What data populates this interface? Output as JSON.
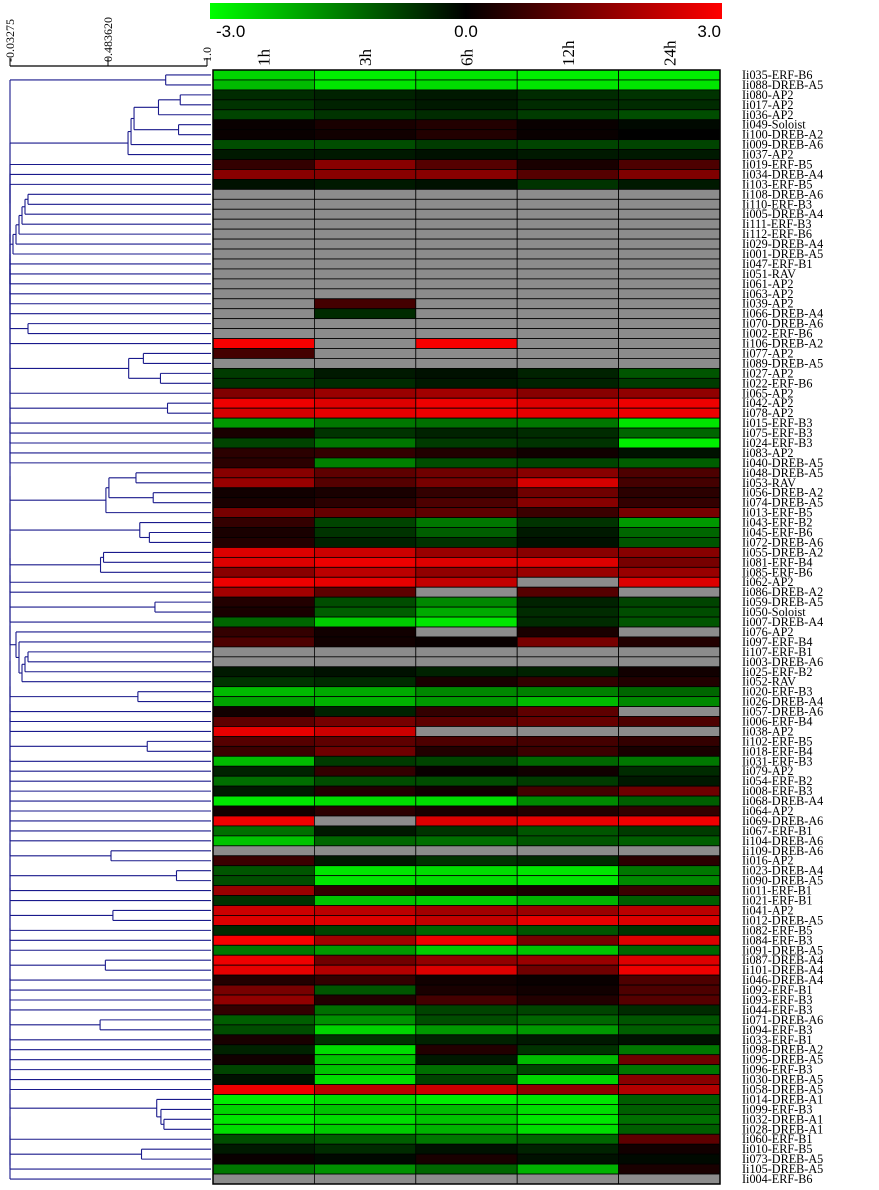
{
  "chart_data": {
    "type": "heatmap",
    "title": "",
    "columns": [
      "1h",
      "3h",
      "6h",
      "12h",
      "24h"
    ],
    "color_scale": {
      "min": -3.0,
      "mid": 0.0,
      "max": 3.0,
      "labels": [
        "-3.0",
        "0.0",
        "3.0"
      ],
      "low_color": "#00ff00",
      "mid_color": "#000000",
      "high_color": "#ff0000",
      "missing_color": "#8c8c8c"
    },
    "dendrogram_axis": {
      "tick_labels": [
        "-0.03275",
        "0.483620",
        "1.0"
      ],
      "line_color": "#1a1a8c"
    },
    "rows": [
      {
        "label": "Ii035-ERF-B6",
        "values": [
          -2.5,
          -2.8,
          -2.7,
          -2.8,
          -2.8
        ]
      },
      {
        "label": "Ii088-DREB-A5",
        "values": [
          -2.2,
          -2.7,
          -2.6,
          -2.7,
          -2.7
        ]
      },
      {
        "label": "Ii080-AP2",
        "values": [
          -0.5,
          -0.4,
          -0.3,
          -0.5,
          -0.6
        ]
      },
      {
        "label": "Ii017-AP2",
        "values": [
          -0.6,
          -0.4,
          -0.3,
          -0.5,
          -0.5
        ]
      },
      {
        "label": "Ii036-AP2",
        "values": [
          -0.8,
          -0.6,
          -0.5,
          -0.7,
          -0.9
        ]
      },
      {
        "label": "Ii049-Soloist",
        "values": [
          0.1,
          0.3,
          0.4,
          0.1,
          -0.1
        ]
      },
      {
        "label": "Ii100-DREB-A2",
        "values": [
          0.1,
          0.2,
          0.4,
          0.1,
          0.0
        ]
      },
      {
        "label": "Ii009-DREB-A6",
        "values": [
          -0.9,
          -0.9,
          -0.7,
          -0.8,
          -0.8
        ]
      },
      {
        "label": "Ii037-AP2",
        "values": [
          -0.3,
          -0.3,
          -0.2,
          -0.3,
          -0.3
        ]
      },
      {
        "label": "Ii019-ERF-B5",
        "values": [
          0.6,
          1.6,
          1.0,
          0.3,
          0.9
        ]
      },
      {
        "label": "Ii034-DREB-A4",
        "values": [
          1.6,
          1.6,
          1.6,
          1.0,
          1.5
        ]
      },
      {
        "label": "Ii103-ERF-B5",
        "values": [
          -0.2,
          -0.3,
          -0.2,
          -0.6,
          -0.3
        ]
      },
      {
        "label": "Ii108-DREB-A6",
        "values": [
          null,
          null,
          null,
          null,
          null
        ]
      },
      {
        "label": "Ii110-ERF-B3",
        "values": [
          null,
          null,
          null,
          null,
          null
        ]
      },
      {
        "label": "Ii005-DREB-A4",
        "values": [
          null,
          null,
          null,
          null,
          null
        ]
      },
      {
        "label": "Ii111-ERF-B3",
        "values": [
          null,
          null,
          null,
          null,
          null
        ]
      },
      {
        "label": "Ii112-ERF-B6",
        "values": [
          null,
          null,
          null,
          null,
          null
        ]
      },
      {
        "label": "Ii029-DREB-A4",
        "values": [
          null,
          null,
          null,
          null,
          null
        ]
      },
      {
        "label": "Ii001-DREB-A5",
        "values": [
          null,
          null,
          null,
          null,
          null
        ]
      },
      {
        "label": "Ii047-ERF-B1",
        "values": [
          null,
          null,
          null,
          null,
          null
        ]
      },
      {
        "label": "Ii051-RAV",
        "values": [
          null,
          null,
          null,
          null,
          null
        ]
      },
      {
        "label": "Ii061-AP2",
        "values": [
          null,
          null,
          null,
          null,
          null
        ]
      },
      {
        "label": "Ii063-AP2",
        "values": [
          null,
          null,
          null,
          null,
          null
        ]
      },
      {
        "label": "Ii039-AP2",
        "values": [
          null,
          0.8,
          null,
          null,
          null
        ]
      },
      {
        "label": "Ii066-DREB-A4",
        "values": [
          null,
          -0.5,
          null,
          null,
          null
        ]
      },
      {
        "label": "Ii070-DREB-A6",
        "values": [
          null,
          null,
          null,
          null,
          null
        ]
      },
      {
        "label": "Ii002-ERF-B6",
        "values": [
          null,
          null,
          null,
          null,
          null
        ]
      },
      {
        "label": "Ii106-DREB-A2",
        "values": [
          2.9,
          null,
          2.9,
          null,
          null
        ]
      },
      {
        "label": "Ii077-AP2",
        "values": [
          0.8,
          null,
          null,
          null,
          null
        ]
      },
      {
        "label": "Ii089-DREB-A5",
        "values": [
          null,
          null,
          null,
          null,
          null
        ]
      },
      {
        "label": "Ii027-AP2",
        "values": [
          -0.7,
          -0.3,
          -0.2,
          -0.4,
          -1.0
        ]
      },
      {
        "label": "Ii022-ERF-B6",
        "values": [
          -0.6,
          -0.5,
          -0.3,
          -0.4,
          -0.7
        ]
      },
      {
        "label": "Ii065-AP2",
        "values": [
          1.5,
          1.8,
          1.9,
          1.6,
          1.7
        ]
      },
      {
        "label": "Ii042-AP2",
        "values": [
          2.8,
          2.6,
          2.8,
          2.6,
          2.8
        ]
      },
      {
        "label": "Ii078-AP2",
        "values": [
          2.5,
          2.7,
          2.8,
          2.7,
          2.8
        ]
      },
      {
        "label": "Ii015-ERF-B3",
        "values": [
          -1.8,
          -1.4,
          -1.3,
          -1.4,
          -2.7
        ]
      },
      {
        "label": "Ii075-ERF-B3",
        "values": [
          0.3,
          -0.6,
          -0.4,
          -0.5,
          -1.2
        ]
      },
      {
        "label": "Ii024-ERF-B3",
        "values": [
          -0.8,
          -1.4,
          -0.7,
          -0.6,
          -2.8
        ]
      },
      {
        "label": "Ii083-AP2",
        "values": [
          0.5,
          0.6,
          0.4,
          0.2,
          -0.2
        ]
      },
      {
        "label": "Ii040-DREB-A5",
        "values": [
          0.5,
          -1.5,
          -0.9,
          -0.8,
          -1.1
        ]
      },
      {
        "label": "Ii048-DREB-A5",
        "values": [
          1.6,
          1.1,
          1.3,
          1.6,
          0.9
        ]
      },
      {
        "label": "Ii053-RAV",
        "values": [
          1.8,
          1.0,
          1.4,
          2.5,
          0.8
        ]
      },
      {
        "label": "Ii056-DREB-A2",
        "values": [
          0.2,
          0.3,
          0.6,
          1.3,
          0.5
        ]
      },
      {
        "label": "Ii074-DREB-A5",
        "values": [
          0.3,
          0.5,
          0.9,
          1.6,
          0.6
        ]
      },
      {
        "label": "Ii013-ERF-B5",
        "values": [
          1.4,
          1.2,
          1.1,
          0.7,
          1.4
        ]
      },
      {
        "label": "Ii043-ERF-B2",
        "values": [
          0.6,
          -0.8,
          -1.4,
          -0.6,
          -1.8
        ]
      },
      {
        "label": "Ii045-ERF-B6",
        "values": [
          0.3,
          -0.6,
          -1.1,
          -0.3,
          -1.2
        ]
      },
      {
        "label": "Ii072-DREB-A6",
        "values": [
          0.4,
          -0.4,
          -0.6,
          -0.2,
          -1.0
        ]
      },
      {
        "label": "Ii055-DREB-A2",
        "values": [
          2.6,
          2.4,
          1.8,
          1.6,
          1.6
        ]
      },
      {
        "label": "Ii081-ERF-B4",
        "values": [
          2.6,
          2.8,
          2.6,
          2.6,
          1.4
        ]
      },
      {
        "label": "Ii085-ERF-B6",
        "values": [
          1.6,
          2.2,
          1.7,
          1.8,
          1.8
        ]
      },
      {
        "label": "Ii062-AP2",
        "values": [
          2.8,
          2.7,
          2.3,
          null,
          2.6
        ]
      },
      {
        "label": "Ii086-DREB-A2",
        "values": [
          1.9,
          1.1,
          null,
          1.0,
          null
        ]
      },
      {
        "label": "Ii059-DREB-A5",
        "values": [
          0.4,
          -0.9,
          -1.6,
          -0.4,
          -0.8
        ]
      },
      {
        "label": "Ii050-Soloist",
        "values": [
          0.3,
          -1.1,
          -2.0,
          -0.5,
          -0.9
        ]
      },
      {
        "label": "Ii007-DREB-A4",
        "values": [
          -1.2,
          -2.4,
          -2.7,
          -0.5,
          -1.0
        ]
      },
      {
        "label": "Ii076-AP2",
        "values": [
          0.6,
          0.2,
          null,
          0.3,
          null
        ]
      },
      {
        "label": "Ii097-ERF-B4",
        "values": [
          0.9,
          0.2,
          0.1,
          1.4,
          0.4
        ]
      },
      {
        "label": "Ii107-ERF-B1",
        "values": [
          null,
          null,
          null,
          null,
          null
        ]
      },
      {
        "label": "Ii003-DREB-A6",
        "values": [
          null,
          null,
          null,
          null,
          null
        ]
      },
      {
        "label": "Ii025-ERF-B2",
        "values": [
          -0.3,
          -0.2,
          -0.4,
          -0.4,
          0.2
        ]
      },
      {
        "label": "Ii052-RAV",
        "values": [
          -0.6,
          -0.5,
          0.3,
          0.6,
          0.4
        ]
      },
      {
        "label": "Ii020-ERF-B3",
        "values": [
          -2.2,
          -2.0,
          -1.6,
          -1.5,
          -1.2
        ]
      },
      {
        "label": "Ii026-DREB-A4",
        "values": [
          -1.9,
          -2.1,
          -1.8,
          -2.2,
          -1.6
        ]
      },
      {
        "label": "Ii057-DREB-A6",
        "values": [
          0.2,
          -0.4,
          0.6,
          1.1,
          null
        ]
      },
      {
        "label": "Ii006-ERF-B4",
        "values": [
          1.1,
          1.4,
          1.1,
          1.2,
          0.9
        ]
      },
      {
        "label": "Ii038-AP2",
        "values": [
          2.7,
          2.4,
          null,
          null,
          null
        ]
      },
      {
        "label": "Ii102-ERF-B5",
        "values": [
          1.0,
          1.1,
          0.9,
          0.8,
          0.6
        ]
      },
      {
        "label": "Ii018-ERF-B4",
        "values": [
          0.7,
          1.3,
          0.4,
          0.7,
          0.3
        ]
      },
      {
        "label": "Ii031-ERF-B3",
        "values": [
          -2.2,
          -0.7,
          -0.8,
          -1.2,
          -1.4
        ]
      },
      {
        "label": "Ii079-AP2",
        "values": [
          -0.4,
          0.6,
          0.1,
          0.2,
          -0.5
        ]
      },
      {
        "label": "Ii054-ERF-B2",
        "values": [
          -1.3,
          -0.9,
          -0.9,
          -0.7,
          -0.3
        ]
      },
      {
        "label": "Ii008-ERF-B3",
        "values": [
          -0.3,
          0.4,
          0.2,
          0.8,
          1.3
        ]
      },
      {
        "label": "Ii068-DREB-A4",
        "values": [
          -2.7,
          -2.6,
          -2.6,
          -1.6,
          -1.1
        ]
      },
      {
        "label": "Ii064-AP2",
        "values": [
          0.2,
          0.5,
          0.3,
          0.4,
          0.6
        ]
      },
      {
        "label": "Ii069-DREB-A6",
        "values": [
          2.8,
          null,
          2.6,
          2.7,
          2.8
        ]
      },
      {
        "label": "Ii067-ERF-B1",
        "values": [
          -1.3,
          -0.3,
          -0.6,
          -1.0,
          -0.7
        ]
      },
      {
        "label": "Ii104-DREB-A6",
        "values": [
          -2.3,
          -1.2,
          -1.3,
          -1.0,
          -1.1
        ]
      },
      {
        "label": "Ii109-DREB-A6",
        "values": [
          null,
          null,
          null,
          null,
          null
        ]
      },
      {
        "label": "Ii016-AP2",
        "values": [
          0.7,
          -0.3,
          -0.6,
          -0.5,
          0.5
        ]
      },
      {
        "label": "Ii023-DREB-A4",
        "values": [
          -1.0,
          -2.7,
          -2.6,
          -2.7,
          -1.4
        ]
      },
      {
        "label": "Ii090-DREB-A5",
        "values": [
          -0.9,
          -2.7,
          -2.6,
          -2.7,
          -1.6
        ]
      },
      {
        "label": "Ii011-ERF-B1",
        "values": [
          1.8,
          0.6,
          0.4,
          0.3,
          0.7
        ]
      },
      {
        "label": "Ii021-ERF-B1",
        "values": [
          -0.6,
          -2.3,
          -2.4,
          -2.1,
          -1.1
        ]
      },
      {
        "label": "Ii041-AP2",
        "values": [
          2.4,
          2.2,
          1.9,
          1.8,
          2.2
        ]
      },
      {
        "label": "Ii012-DREB-A5",
        "values": [
          2.6,
          2.6,
          2.3,
          2.7,
          2.6
        ]
      },
      {
        "label": "Ii082-ERF-B5",
        "values": [
          -0.5,
          -0.8,
          -1.2,
          -1.0,
          -0.6
        ]
      },
      {
        "label": "Ii084-ERF-B3",
        "values": [
          2.9,
          1.9,
          2.8,
          1.4,
          2.6
        ]
      },
      {
        "label": "Ii091-DREB-A5",
        "values": [
          -1.4,
          -1.8,
          -2.4,
          -2.3,
          -1.2
        ]
      },
      {
        "label": "Ii087-DREB-A4",
        "values": [
          2.8,
          1.3,
          1.7,
          1.8,
          2.6
        ]
      },
      {
        "label": "Ii101-DREB-A4",
        "values": [
          2.7,
          2.1,
          2.6,
          1.3,
          2.8
        ]
      },
      {
        "label": "Ii046-DREB-A4",
        "values": [
          0.4,
          0.6,
          0.2,
          0.1,
          0.9
        ]
      },
      {
        "label": "Ii092-ERF-B1",
        "values": [
          1.4,
          -1.0,
          0.3,
          0.2,
          0.9
        ]
      },
      {
        "label": "Ii093-ERF-B3",
        "values": [
          1.7,
          0.4,
          0.8,
          0.4,
          1.0
        ]
      },
      {
        "label": "Ii044-ERF-B3",
        "values": [
          0.6,
          -1.3,
          -0.8,
          -0.8,
          -0.5
        ]
      },
      {
        "label": "Ii071-DREB-A6",
        "values": [
          -1.1,
          -1.7,
          -0.9,
          -1.2,
          -1.0
        ]
      },
      {
        "label": "Ii094-ERF-B3",
        "values": [
          -0.9,
          -2.5,
          -1.8,
          -1.8,
          -1.1
        ]
      },
      {
        "label": "Ii033-ERF-B1",
        "values": [
          0.3,
          -0.6,
          -0.4,
          -0.3,
          -0.2
        ]
      },
      {
        "label": "Ii098-DREB-A2",
        "values": [
          -0.4,
          -2.6,
          0.4,
          -0.6,
          -1.4
        ]
      },
      {
        "label": "Ii095-DREB-A5",
        "values": [
          0.2,
          -2.3,
          -0.3,
          -2.2,
          1.3
        ]
      },
      {
        "label": "Ii096-ERF-B3",
        "values": [
          -0.8,
          -2.3,
          -1.3,
          -0.8,
          -1.4
        ]
      },
      {
        "label": "Ii030-DREB-A5",
        "values": [
          -0.2,
          -2.6,
          -0.8,
          -2.5,
          1.6
        ]
      },
      {
        "label": "Ii058-DREB-A5",
        "values": [
          2.8,
          2.2,
          2.4,
          1.7,
          2.1
        ]
      },
      {
        "label": "Ii014-DREB-A1",
        "values": [
          -2.8,
          -2.6,
          -2.8,
          -2.7,
          -1.1
        ]
      },
      {
        "label": "Ii099-ERF-B3",
        "values": [
          -2.5,
          -2.3,
          -2.2,
          -2.6,
          -1.1
        ]
      },
      {
        "label": "Ii032-DREB-A1",
        "values": [
          -2.7,
          -2.6,
          -2.3,
          -2.7,
          -1.3
        ]
      },
      {
        "label": "Ii028-DREB-A1",
        "values": [
          -2.6,
          -2.4,
          -2.1,
          -2.6,
          -1.1
        ]
      },
      {
        "label": "Ii060-ERF-B1",
        "values": [
          -0.9,
          -1.1,
          -1.4,
          -1.2,
          1.1
        ]
      },
      {
        "label": "Ii010-ERF-B5",
        "values": [
          -0.3,
          -0.5,
          -0.2,
          -0.4,
          0.2
        ]
      },
      {
        "label": "Ii073-DREB-A5",
        "values": [
          0.1,
          -0.1,
          0.3,
          -0.2,
          -0.1
        ]
      },
      {
        "label": "Ii105-DREB-A5",
        "values": [
          -1.4,
          -1.7,
          -1.2,
          -2.1,
          0.3
        ]
      },
      {
        "label": "Ii004-ERF-B6",
        "values": [
          null,
          null,
          null,
          null,
          null
        ]
      }
    ]
  }
}
